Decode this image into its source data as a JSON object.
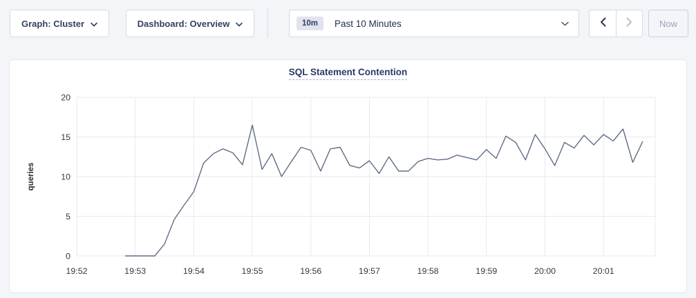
{
  "toolbar": {
    "graph_selector": {
      "label": "Graph: Cluster"
    },
    "dashboard_selector": {
      "label": "Dashboard: Overview"
    },
    "time_range": {
      "badge": "10m",
      "label": "Past 10 Minutes"
    },
    "now_button": {
      "label": "Now"
    }
  },
  "colors": {
    "page_bg": "#f4f5f9",
    "card_bg": "#ffffff",
    "line": "#5f6c87",
    "grid": "#e9eaee",
    "axis_text": "#33373e",
    "title": "#283a68",
    "button_text": "#334061",
    "disabled": "#b7bfd0"
  },
  "chart_data": {
    "type": "line",
    "title": "SQL Statement Contention",
    "ylabel": "queries",
    "ylim": [
      0,
      20
    ],
    "yticks": [
      0,
      5,
      10,
      15,
      20
    ],
    "x_tick_labels": [
      "19:52",
      "19:53",
      "19:54",
      "19:55",
      "19:56",
      "19:57",
      "19:58",
      "19:59",
      "20:00",
      "20:01"
    ],
    "x_tick_seconds": [
      0,
      60,
      120,
      180,
      240,
      300,
      360,
      420,
      480,
      540
    ],
    "x_domain_seconds": [
      0,
      593
    ],
    "grid": true,
    "legend": "none",
    "series": [
      {
        "name": "queries",
        "color": "#5f6c87",
        "x_seconds": [
          50,
          60,
          70,
          80,
          90,
          100,
          110,
          120,
          130,
          140,
          150,
          160,
          170,
          180,
          190,
          200,
          210,
          220,
          230,
          240,
          250,
          260,
          270,
          280,
          290,
          300,
          310,
          320,
          330,
          340,
          350,
          360,
          370,
          380,
          390,
          400,
          410,
          420,
          430,
          440,
          450,
          460,
          470,
          480,
          490,
          500,
          510,
          520,
          530,
          540,
          550,
          560,
          570,
          580
        ],
        "values": [
          0,
          0,
          0,
          0,
          1.5,
          4.6,
          6.4,
          8.1,
          11.7,
          12.9,
          13.5,
          13.0,
          11.5,
          16.5,
          10.9,
          12.9,
          10.0,
          11.9,
          13.7,
          13.3,
          10.7,
          13.5,
          13.7,
          11.4,
          11.1,
          12.0,
          10.4,
          12.5,
          10.7,
          10.7,
          11.9,
          12.3,
          12.1,
          12.2,
          12.7,
          12.4,
          12.1,
          13.4,
          12.3,
          15.1,
          14.3,
          12.1,
          15.3,
          13.5,
          11.4,
          14.3,
          13.6,
          15.2,
          14.0,
          15.3,
          14.5,
          16.0,
          11.8,
          14.4
        ]
      }
    ]
  }
}
